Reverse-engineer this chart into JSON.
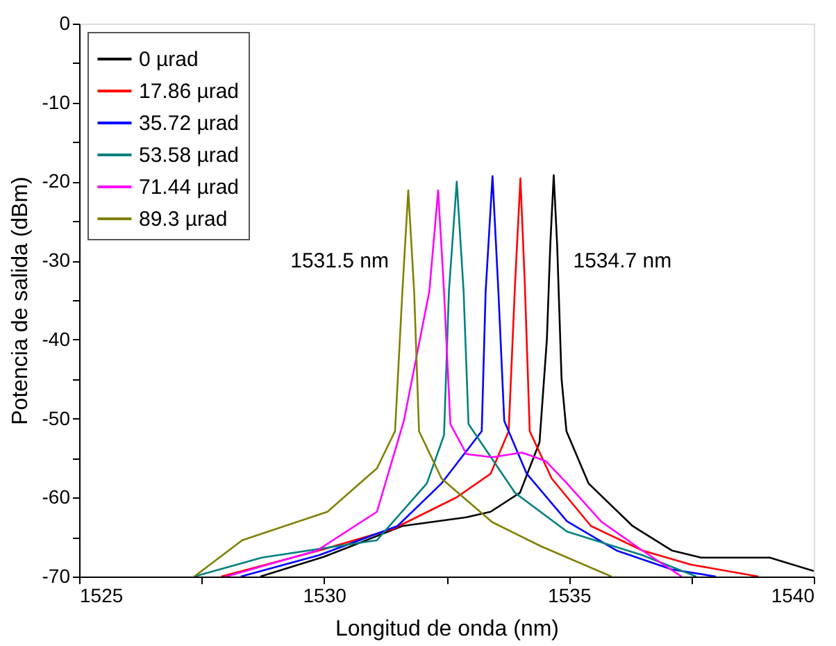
{
  "chart_data": {
    "type": "line",
    "xlabel": "Longitud de onda (nm)",
    "ylabel": "Potencia de salida (dBm)",
    "xlim": [
      1525,
      1540
    ],
    "ylim": [
      -70,
      0
    ],
    "xticks": [
      1525,
      {
        "value": 1527.5,
        "label": null
      },
      1530,
      {
        "value": 1532.5,
        "label": null
      },
      1535,
      {
        "value": 1537.5,
        "label": null
      },
      1540
    ],
    "yticks": [
      -70,
      {
        "value": -65,
        "label": null
      },
      -60,
      {
        "value": -55,
        "label": null
      },
      -50,
      {
        "value": -45,
        "label": null
      },
      -40,
      {
        "value": -35,
        "label": null
      },
      -30,
      {
        "value": -25,
        "label": null
      },
      -20,
      {
        "value": -15,
        "label": null
      },
      -10,
      {
        "value": -5,
        "label": null
      },
      0
    ],
    "grid": false,
    "legend": "top left",
    "marker": "none",
    "line_style": "solid",
    "annotations": [
      {
        "text": "1531.5 nm",
        "x": 1531.72,
        "y": -30
      },
      {
        "text": "1534.7 nm",
        "x": 1534.69,
        "y": -30
      }
    ],
    "series": [
      {
        "name": "0 µrad",
        "color": "#000000",
        "x": [
          1528.7,
          1530,
          1531.6,
          1532.9,
          1533.4,
          1534.0,
          1534.4,
          1534.55,
          1534.62,
          1534.69,
          1534.76,
          1534.85,
          1534.95,
          1535.4,
          1536.3,
          1537.1,
          1537.7,
          1539.1,
          1540
        ],
        "values": [
          -70,
          -67.5,
          -63.6,
          -62.5,
          -61.8,
          -59.4,
          -53,
          -40,
          -28,
          -19.2,
          -28,
          -45,
          -51.6,
          -58.2,
          -63.6,
          -66.7,
          -67.6,
          -67.6,
          -69.3
        ]
      },
      {
        "name": "17.86 µrad",
        "color": "#ff0000",
        "x": [
          1527.9,
          1529.9,
          1531.4,
          1532.7,
          1533.4,
          1533.77,
          1533.9,
          1534.01,
          1534.1,
          1534.2,
          1534.65,
          1535.45,
          1536.5,
          1537.5,
          1538.87
        ],
        "values": [
          -70,
          -66.7,
          -64,
          -60,
          -57,
          -51.6,
          -33,
          -19.6,
          -33,
          -51.6,
          -57.6,
          -63.6,
          -66.7,
          -68.5,
          -70
        ]
      },
      {
        "name": "35.72 µrad",
        "color": "#0000ff",
        "x": [
          1528.3,
          1529.9,
          1531.5,
          1532.4,
          1533.22,
          1533.3,
          1533.44,
          1533.56,
          1533.68,
          1534.14,
          1534.96,
          1535.97,
          1537.1,
          1538.0
        ],
        "values": [
          -70,
          -67.3,
          -63.6,
          -58.2,
          -51.6,
          -33.9,
          -19.3,
          -33.9,
          -50.3,
          -57,
          -63,
          -66.7,
          -69.1,
          -70
        ]
      },
      {
        "name": "53.58 µrad",
        "color": "#008080",
        "x": [
          1527.35,
          1528.73,
          1531.08,
          1532.1,
          1532.45,
          1532.55,
          1532.71,
          1532.85,
          1532.95,
          1533.9,
          1534.96,
          1536.5,
          1537.6
        ],
        "values": [
          -70,
          -67.6,
          -65.4,
          -58.2,
          -52.1,
          -33.9,
          -20,
          -33.9,
          -50.7,
          -59.4,
          -64.3,
          -67.3,
          -70
        ]
      },
      {
        "name": "71.44 µrad",
        "color": "#ff00ff",
        "x": [
          1528.0,
          1529.86,
          1531.08,
          1531.63,
          1532.15,
          1532.33,
          1532.45,
          1532.58,
          1532.91,
          1533.43,
          1534.04,
          1534.53,
          1534.96,
          1535.67,
          1536.5,
          1537.3
        ],
        "values": [
          -70,
          -66.7,
          -61.8,
          -50.3,
          -33.9,
          -21.1,
          -33.9,
          -50.7,
          -54.5,
          -54.9,
          -54.3,
          -55.4,
          -58.2,
          -63.1,
          -66.7,
          -70
        ]
      },
      {
        "name": "89.3 µrad",
        "color": "#808000",
        "x": [
          1527.35,
          1528.33,
          1530.07,
          1531.08,
          1531.45,
          1531.6,
          1531.72,
          1531.84,
          1531.94,
          1532.4,
          1533.43,
          1534.44,
          1535.87
        ],
        "values": [
          -70,
          -65.4,
          -61.8,
          -56.3,
          -51.6,
          -33.9,
          -21.1,
          -33.9,
          -51.6,
          -57.6,
          -63.1,
          -66.2,
          -70
        ]
      }
    ]
  }
}
